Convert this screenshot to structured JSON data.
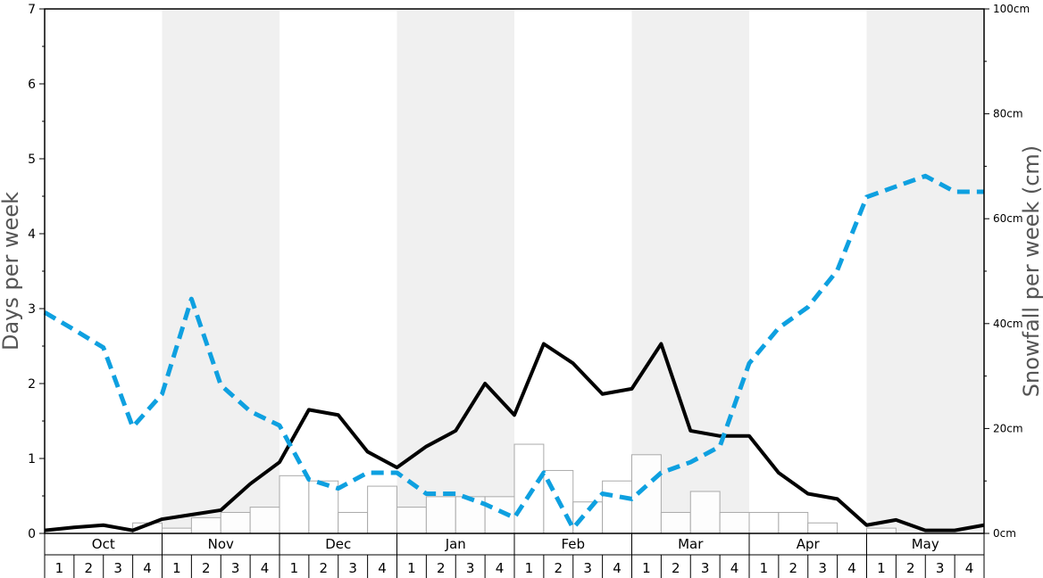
{
  "chart_data": {
    "type": "bar+line",
    "months": [
      "Oct",
      "Nov",
      "Dec",
      "Jan",
      "Feb",
      "Mar",
      "Apr",
      "May"
    ],
    "week_labels": [
      "1",
      "2",
      "3",
      "4"
    ],
    "y_left": {
      "label": "Days per week",
      "min": 0,
      "max": 7,
      "ticks": [
        "0",
        "1",
        "2",
        "3",
        "4",
        "5",
        "6",
        "7"
      ]
    },
    "y_right": {
      "label": "Snowfall per week (cm)",
      "min": 0,
      "max": 100,
      "ticks": [
        "0cm",
        "20cm",
        "40cm",
        "60cm",
        "80cm",
        "100cm"
      ]
    },
    "series": [
      {
        "kind": "bar",
        "axis": "right",
        "values": [
          0,
          0,
          0,
          2,
          1,
          3,
          4,
          5,
          11,
          10,
          4,
          9,
          5,
          7,
          7,
          7,
          17,
          12,
          6,
          10,
          15,
          4,
          8,
          4,
          4,
          4,
          2,
          0,
          1,
          0,
          0,
          0
        ]
      },
      {
        "kind": "line",
        "style": "solid",
        "axis": "left",
        "values": [
          0.04,
          0.08,
          0.11,
          0.04,
          0.19,
          0.25,
          0.31,
          0.66,
          0.95,
          1.65,
          1.58,
          1.09,
          0.88,
          1.16,
          1.37,
          2.0,
          1.58,
          2.53,
          2.27,
          1.86,
          1.93,
          2.53,
          1.37,
          1.3,
          1.3,
          0.81,
          0.53,
          0.46,
          0.11,
          0.18,
          0.04,
          0.04,
          0.11
        ]
      },
      {
        "kind": "line",
        "style": "dashed",
        "axis": "left",
        "values": [
          2.95,
          2.72,
          2.48,
          1.42,
          1.86,
          3.13,
          1.98,
          1.63,
          1.44,
          0.72,
          0.6,
          0.81,
          0.81,
          0.53,
          0.53,
          0.39,
          0.21,
          0.81,
          0.07,
          0.53,
          0.46,
          0.81,
          0.95,
          1.16,
          2.27,
          2.74,
          3.02,
          3.51,
          4.49,
          4.63,
          4.77,
          4.56,
          4.56
        ]
      }
    ],
    "colors": {
      "dashed_line": "#0ea0e0",
      "solid_line": "#000000",
      "bar_stroke": "#aaaaaa",
      "band": "#f0f0f0"
    },
    "grid": false
  }
}
